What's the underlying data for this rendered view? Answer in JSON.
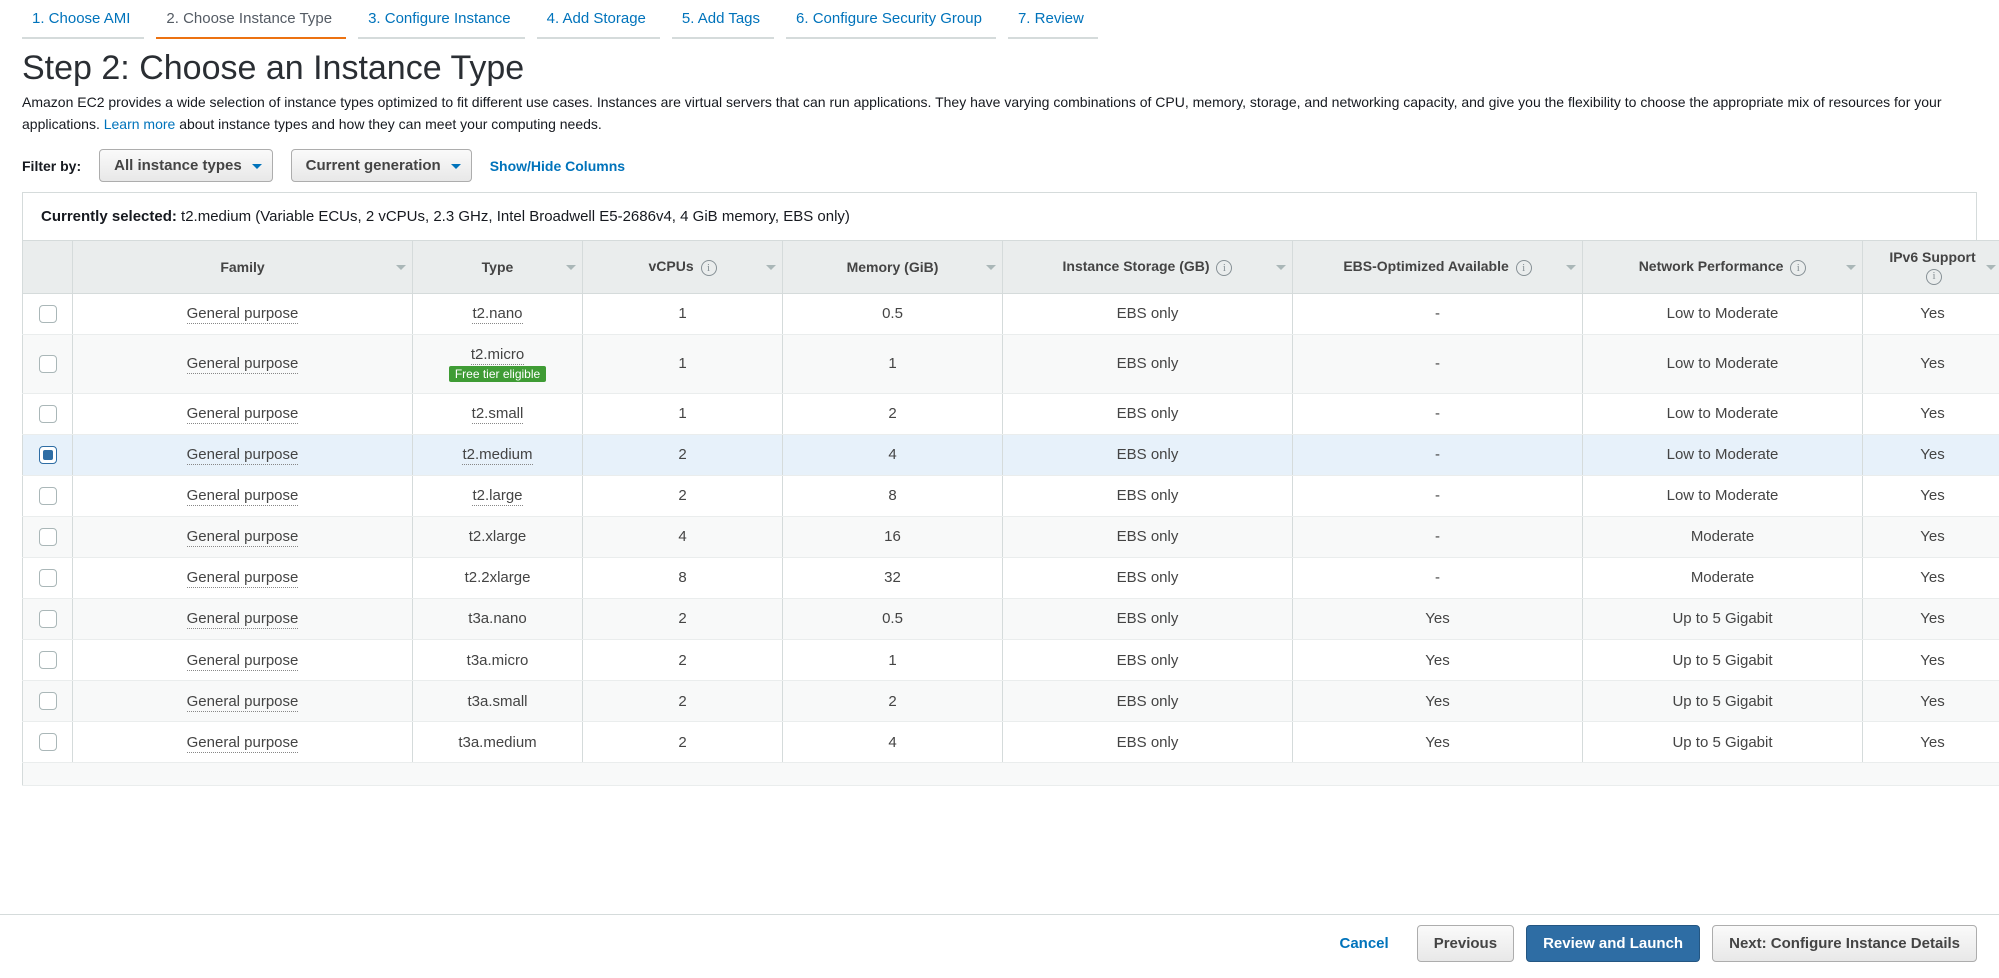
{
  "steps": [
    {
      "label": "1. Choose AMI",
      "active": false
    },
    {
      "label": "2. Choose Instance Type",
      "active": true
    },
    {
      "label": "3. Configure Instance",
      "active": false
    },
    {
      "label": "4. Add Storage",
      "active": false
    },
    {
      "label": "5. Add Tags",
      "active": false
    },
    {
      "label": "6. Configure Security Group",
      "active": false
    },
    {
      "label": "7. Review",
      "active": false
    }
  ],
  "title": "Step 2: Choose an Instance Type",
  "descr_pre": "Amazon EC2 provides a wide selection of instance types optimized to fit different use cases. Instances are virtual servers that can run applications. They have varying combinations of CPU, memory, storage, and networking capacity, and give you the flexibility to choose the appropriate mix of resources for your applications. ",
  "descr_link": "Learn more",
  "descr_post": " about instance types and how they can meet your computing needs.",
  "filter": {
    "label": "Filter by:",
    "dd1": "All instance types",
    "dd2": "Current generation",
    "showhide": "Show/Hide Columns"
  },
  "selected_banner_label": "Currently selected: ",
  "selected_banner_value": "t2.medium (Variable ECUs, 2 vCPUs, 2.3 GHz, Intel Broadwell E5-2686v4, 4 GiB memory, EBS only)",
  "columns": {
    "family": "Family",
    "type": "Type",
    "vcpu": "vCPUs",
    "mem": "Memory (GiB)",
    "stor": "Instance Storage (GB)",
    "ebs": "EBS-Optimized Available",
    "net": "Network Performance",
    "ipv6": "IPv6 Support"
  },
  "free_tier_badge": "Free tier eligible",
  "rows": [
    {
      "sel": false,
      "family": "General purpose",
      "type": "t2.nano",
      "type_dotted": true,
      "free": false,
      "vcpu": "1",
      "mem": "0.5",
      "stor": "EBS only",
      "ebs": "-",
      "net": "Low to Moderate",
      "ipv6": "Yes"
    },
    {
      "sel": false,
      "family": "General purpose",
      "type": "t2.micro",
      "type_dotted": true,
      "free": true,
      "vcpu": "1",
      "mem": "1",
      "stor": "EBS only",
      "ebs": "-",
      "net": "Low to Moderate",
      "ipv6": "Yes"
    },
    {
      "sel": false,
      "family": "General purpose",
      "type": "t2.small",
      "type_dotted": true,
      "free": false,
      "vcpu": "1",
      "mem": "2",
      "stor": "EBS only",
      "ebs": "-",
      "net": "Low to Moderate",
      "ipv6": "Yes"
    },
    {
      "sel": true,
      "family": "General purpose",
      "type": "t2.medium",
      "type_dotted": true,
      "free": false,
      "vcpu": "2",
      "mem": "4",
      "stor": "EBS only",
      "ebs": "-",
      "net": "Low to Moderate",
      "ipv6": "Yes"
    },
    {
      "sel": false,
      "family": "General purpose",
      "type": "t2.large",
      "type_dotted": true,
      "free": false,
      "vcpu": "2",
      "mem": "8",
      "stor": "EBS only",
      "ebs": "-",
      "net": "Low to Moderate",
      "ipv6": "Yes"
    },
    {
      "sel": false,
      "family": "General purpose",
      "type": "t2.xlarge",
      "type_dotted": false,
      "free": false,
      "vcpu": "4",
      "mem": "16",
      "stor": "EBS only",
      "ebs": "-",
      "net": "Moderate",
      "ipv6": "Yes"
    },
    {
      "sel": false,
      "family": "General purpose",
      "type": "t2.2xlarge",
      "type_dotted": false,
      "free": false,
      "vcpu": "8",
      "mem": "32",
      "stor": "EBS only",
      "ebs": "-",
      "net": "Moderate",
      "ipv6": "Yes"
    },
    {
      "sel": false,
      "family": "General purpose",
      "type": "t3a.nano",
      "type_dotted": false,
      "free": false,
      "vcpu": "2",
      "mem": "0.5",
      "stor": "EBS only",
      "ebs": "Yes",
      "net": "Up to 5 Gigabit",
      "ipv6": "Yes"
    },
    {
      "sel": false,
      "family": "General purpose",
      "type": "t3a.micro",
      "type_dotted": false,
      "free": false,
      "vcpu": "2",
      "mem": "1",
      "stor": "EBS only",
      "ebs": "Yes",
      "net": "Up to 5 Gigabit",
      "ipv6": "Yes"
    },
    {
      "sel": false,
      "family": "General purpose",
      "type": "t3a.small",
      "type_dotted": false,
      "free": false,
      "vcpu": "2",
      "mem": "2",
      "stor": "EBS only",
      "ebs": "Yes",
      "net": "Up to 5 Gigabit",
      "ipv6": "Yes"
    },
    {
      "sel": false,
      "family": "General purpose",
      "type": "t3a.medium",
      "type_dotted": false,
      "free": false,
      "vcpu": "2",
      "mem": "4",
      "stor": "EBS only",
      "ebs": "Yes",
      "net": "Up to 5 Gigabit",
      "ipv6": "Yes"
    }
  ],
  "footer": {
    "cancel": "Cancel",
    "previous": "Previous",
    "review": "Review and Launch",
    "next": "Next: Configure Instance Details"
  },
  "style": {
    "link_color": "#0073bb",
    "active_tab_color": "#ec7211",
    "row_selected_bg": "#e7f1fa",
    "row_stripe_bg": "#f8f9f9",
    "header_bg": "#eaeded",
    "border_color": "#d5dbdb",
    "badge_bg": "#3f9c35",
    "primary_btn_bg": "#2e6da4"
  }
}
